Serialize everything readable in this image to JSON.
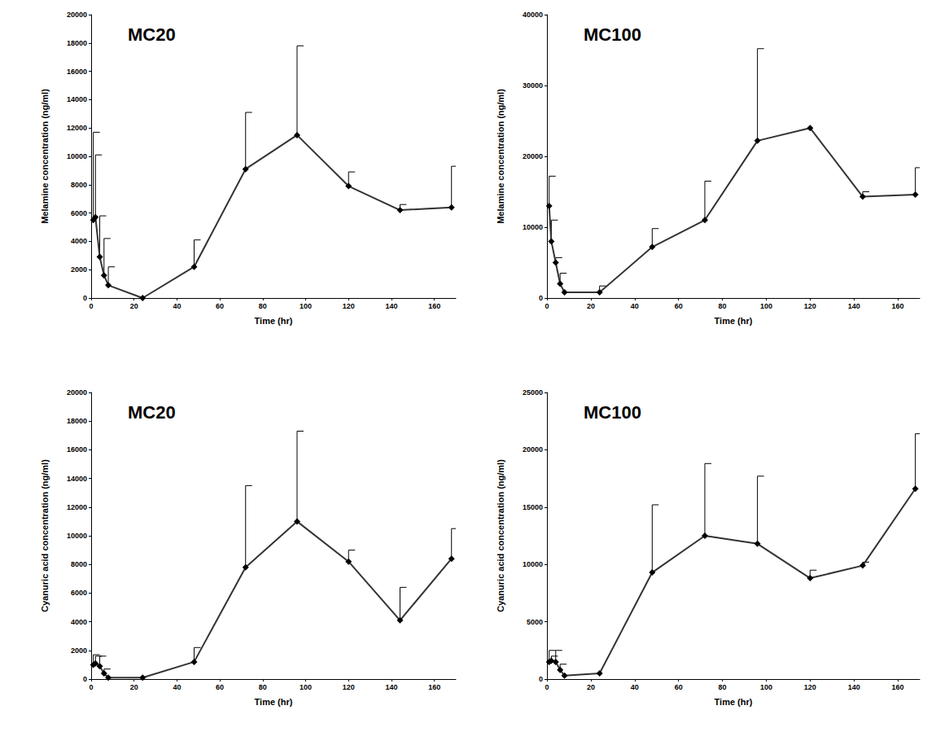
{
  "chart_data": [
    {
      "type": "line",
      "title": "MC20",
      "x_label": "Time (hr)",
      "y_label": "Melamine concentration (ng/ml)",
      "x": [
        1,
        2,
        4,
        6,
        8,
        24,
        48,
        72,
        96,
        120,
        144,
        168
      ],
      "values": [
        5500,
        5700,
        2900,
        1600,
        900,
        0,
        2200,
        9100,
        11500,
        7900,
        6200,
        6400
      ],
      "error": [
        6200,
        4400,
        2900,
        2600,
        1300,
        null,
        1900,
        4000,
        6300,
        1000,
        400,
        2900
      ],
      "xlim": [
        0,
        170
      ],
      "xticks": [
        0,
        20,
        40,
        60,
        80,
        100,
        120,
        140,
        160
      ],
      "ylim": [
        0,
        20000
      ],
      "yticks": [
        0,
        2000,
        4000,
        6000,
        8000,
        10000,
        12000,
        14000,
        16000,
        18000,
        20000
      ],
      "color": "#333333",
      "marker": "diamond",
      "grid": false
    },
    {
      "type": "line",
      "title": "MC100",
      "x_label": "Time (hr)",
      "y_label": "Melamine concentration (ng/ml)",
      "x": [
        1,
        2,
        4,
        6,
        8,
        24,
        48,
        72,
        96,
        120,
        144,
        168
      ],
      "values": [
        13000,
        8000,
        5000,
        2000,
        800,
        800,
        7200,
        11000,
        22200,
        24000,
        14300,
        14600
      ],
      "error": [
        4200,
        3000,
        700,
        1500,
        null,
        900,
        2600,
        5500,
        13000,
        null,
        700,
        3800
      ],
      "xlim": [
        0,
        170
      ],
      "xticks": [
        0,
        20,
        40,
        60,
        80,
        100,
        120,
        140,
        160
      ],
      "ylim": [
        0,
        40000
      ],
      "yticks": [
        0,
        10000,
        20000,
        30000,
        40000
      ],
      "color": "#333333",
      "marker": "diamond",
      "grid": false
    },
    {
      "type": "line",
      "title": "MC20",
      "x_label": "Time (hr)",
      "y_label": "Cyanuric acid concentration (ng/ml)",
      "x": [
        1,
        2,
        4,
        6,
        8,
        24,
        48,
        72,
        96,
        120,
        144,
        168
      ],
      "values": [
        1000,
        1100,
        900,
        400,
        100,
        100,
        1200,
        7800,
        11000,
        8200,
        4100,
        8400
      ],
      "error": [
        700,
        500,
        700,
        300,
        null,
        null,
        1000,
        5700,
        6300,
        800,
        2300,
        2100
      ],
      "xlim": [
        0,
        170
      ],
      "xticks": [
        0,
        20,
        40,
        60,
        80,
        100,
        120,
        140,
        160
      ],
      "ylim": [
        0,
        20000
      ],
      "yticks": [
        0,
        2000,
        4000,
        6000,
        8000,
        10000,
        12000,
        14000,
        16000,
        18000,
        20000
      ],
      "color": "#333333",
      "marker": "diamond",
      "grid": false
    },
    {
      "type": "line",
      "title": "MC100",
      "x_label": "Time (hr)",
      "y_label": "Cyanuric acid concentration (ng/ml)",
      "x": [
        1,
        2,
        4,
        6,
        8,
        24,
        48,
        72,
        96,
        120,
        144,
        168
      ],
      "values": [
        1500,
        1600,
        1500,
        800,
        300,
        500,
        9300,
        12500,
        11800,
        8800,
        9900,
        16600
      ],
      "error": [
        1000,
        400,
        1000,
        500,
        null,
        null,
        5900,
        6300,
        5900,
        700,
        300,
        4800
      ],
      "xlim": [
        0,
        170
      ],
      "xticks": [
        0,
        20,
        40,
        60,
        80,
        100,
        120,
        140,
        160
      ],
      "ylim": [
        0,
        25000
      ],
      "yticks": [
        0,
        5000,
        10000,
        15000,
        20000,
        25000
      ],
      "color": "#333333",
      "marker": "diamond",
      "grid": false
    }
  ]
}
